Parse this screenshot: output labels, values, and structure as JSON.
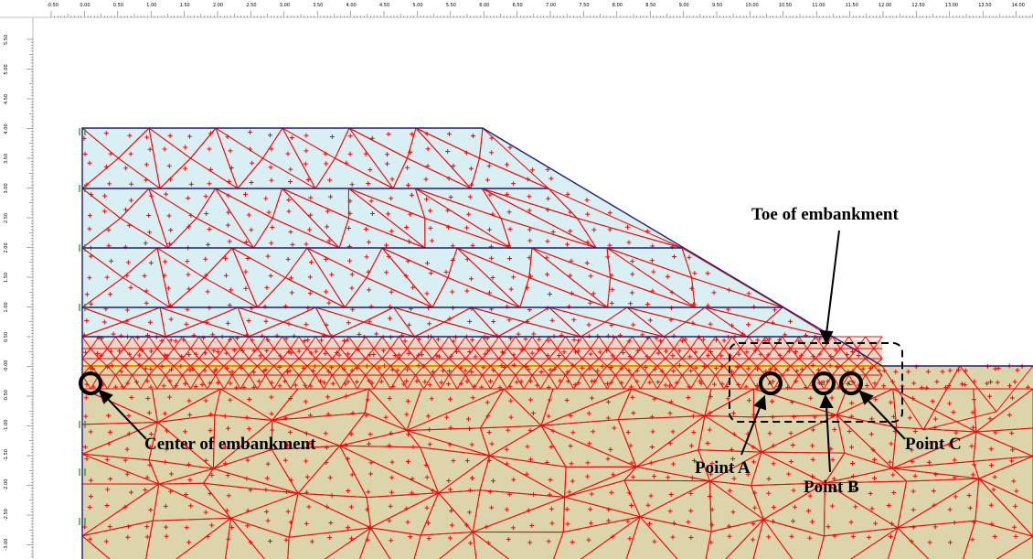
{
  "rulers": {
    "top_labels": [
      "-0.50",
      "0.00",
      "0.50",
      "1.00",
      "1.50",
      "2.00",
      "2.50",
      "3.00",
      "3.50",
      "4.00",
      "4.50",
      "5.00",
      "5.50",
      "6.00",
      "6.50",
      "7.00",
      "7.50",
      "8.00",
      "8.50",
      "9.00",
      "9.50",
      "10.00",
      "10.50",
      "11.00",
      "11.50",
      "12.00",
      "12.50",
      "13.00",
      "13.50",
      "14.00"
    ],
    "left_labels": [
      "5.50",
      "5.00",
      "4.50",
      "4.00",
      "3.50",
      "3.00",
      "2.50",
      "2.00",
      "1.50",
      "1.00",
      "0.50",
      "-0.00",
      "-0.50",
      "-1.00",
      "-1.50",
      "-2.00",
      "-2.50",
      "-3.00"
    ]
  },
  "annotations": {
    "toe": "Toe of embankment",
    "center": "Center of embankment",
    "point_a": "Point A",
    "point_b": "Point B",
    "point_c": "Point C"
  },
  "point_markers": {
    "a": "A",
    "b": "B",
    "c": "C"
  },
  "colors": {
    "embankment_fill": "#d8eff3",
    "foundation_fill": "#dcd5ac",
    "mesh_line": "#ff0000",
    "boundary_line": "#1f1f7a",
    "interface_line": "#ffff00",
    "callout": "#000000"
  }
}
